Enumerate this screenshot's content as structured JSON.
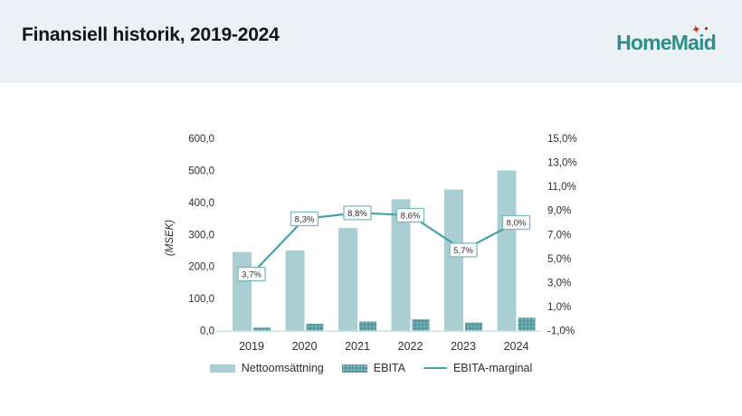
{
  "header": {
    "title": "Finansiell historik, 2019-2024",
    "logo_text": "HomeMaid",
    "logo_star": "✦"
  },
  "colors": {
    "header_bg": "#ebf1f4",
    "netto_bar": "#a9cfd3",
    "ebita_bar": "#549ba2",
    "margin_line": "#49a0a8",
    "annotation_border": "#7cb8bf",
    "annotation_fill": "#ffffff",
    "baseline": "#cfe3e5",
    "tick_text": "#2e2e2e",
    "logo_teal": "#2d8f89",
    "logo_red": "#c0392b"
  },
  "chart_data": {
    "type": "bar",
    "subtype": "grouped-bars-with-line",
    "categories": [
      "2019",
      "2020",
      "2021",
      "2022",
      "2023",
      "2024"
    ],
    "series": [
      {
        "name": "Nettoomsättning",
        "type": "bar",
        "axis": "left",
        "values": [
          245,
          250,
          320,
          410,
          440,
          500
        ]
      },
      {
        "name": "EBITA",
        "type": "bar",
        "axis": "left",
        "values": [
          9,
          21,
          28,
          35,
          25,
          40
        ]
      },
      {
        "name": "EBITA-marginal",
        "type": "line",
        "axis": "right",
        "values": [
          3.7,
          8.3,
          8.8,
          8.6,
          5.7,
          8.0
        ],
        "point_labels": [
          "3,7%",
          "8,3%",
          "8,8%",
          "8,6%",
          "5,7%",
          "8,0%"
        ]
      }
    ],
    "left_axis": {
      "label": "(MSEK)",
      "range": [
        0,
        600
      ],
      "ticks": [
        {
          "v": 600,
          "label": "600,0"
        },
        {
          "v": 500,
          "label": "500,0"
        },
        {
          "v": 400,
          "label": "400,0"
        },
        {
          "v": 300,
          "label": "300,0"
        },
        {
          "v": 200,
          "label": "200,0"
        },
        {
          "v": 100,
          "label": "100,0"
        },
        {
          "v": 0,
          "label": "0,0"
        }
      ]
    },
    "right_axis": {
      "range": [
        -1,
        15
      ],
      "ticks": [
        {
          "v": 15,
          "label": "15,0%"
        },
        {
          "v": 13,
          "label": "13,0%"
        },
        {
          "v": 11,
          "label": "11,0%"
        },
        {
          "v": 9,
          "label": "9,0%"
        },
        {
          "v": 7,
          "label": "7,0%"
        },
        {
          "v": 5,
          "label": "5,0%"
        },
        {
          "v": 3,
          "label": "3,0%"
        },
        {
          "v": 1,
          "label": "1,0%"
        },
        {
          "v": -1,
          "label": "-1,0%"
        }
      ]
    },
    "grid": false,
    "legend_position": "bottom",
    "legend": [
      {
        "label": "Nettoomsättning",
        "swatch": "bar-light"
      },
      {
        "label": "EBITA",
        "swatch": "bar-dark"
      },
      {
        "label": "EBITA-marginal",
        "swatch": "line"
      }
    ]
  }
}
